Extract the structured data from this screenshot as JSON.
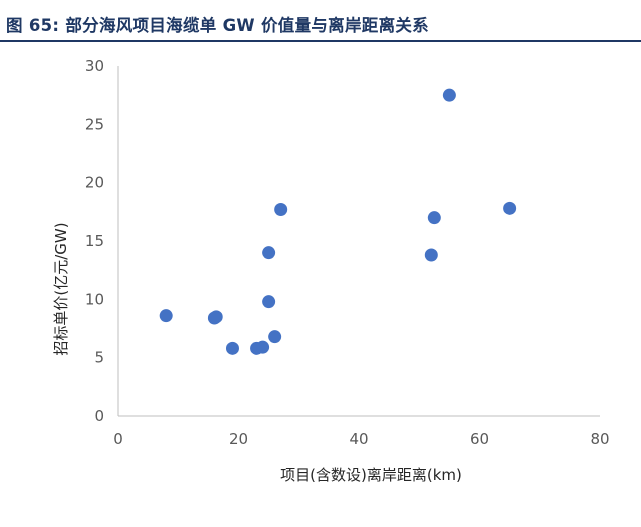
{
  "figure": {
    "title": "图 65: 部分海风项目海缆单 GW 价值量与离岸距离关系"
  },
  "chart_data": {
    "type": "scatter",
    "title": "图 65: 部分海风项目海缆单 GW 价值量与离岸距离关系",
    "xlabel": "项目(含数设)离岸距离(km)",
    "ylabel": "招标单价(亿元/GW)",
    "xlim": [
      0,
      80
    ],
    "ylim": [
      0,
      30
    ],
    "xticks": [
      "0",
      "20",
      "40",
      "60",
      "80"
    ],
    "yticks": [
      "0",
      "5",
      "10",
      "15",
      "20",
      "25",
      "30"
    ],
    "grid": false,
    "marker_color": "#4472c4",
    "points": [
      {
        "x": 8,
        "y": 8.6
      },
      {
        "x": 16,
        "y": 8.4
      },
      {
        "x": 16.3,
        "y": 8.5
      },
      {
        "x": 19,
        "y": 5.8
      },
      {
        "x": 23,
        "y": 5.8
      },
      {
        "x": 24,
        "y": 5.9
      },
      {
        "x": 25,
        "y": 9.8
      },
      {
        "x": 25,
        "y": 14.0
      },
      {
        "x": 26,
        "y": 6.8
      },
      {
        "x": 27,
        "y": 17.7
      },
      {
        "x": 52,
        "y": 13.8
      },
      {
        "x": 52.5,
        "y": 17.0
      },
      {
        "x": 55,
        "y": 27.5
      },
      {
        "x": 65,
        "y": 17.8
      }
    ]
  }
}
